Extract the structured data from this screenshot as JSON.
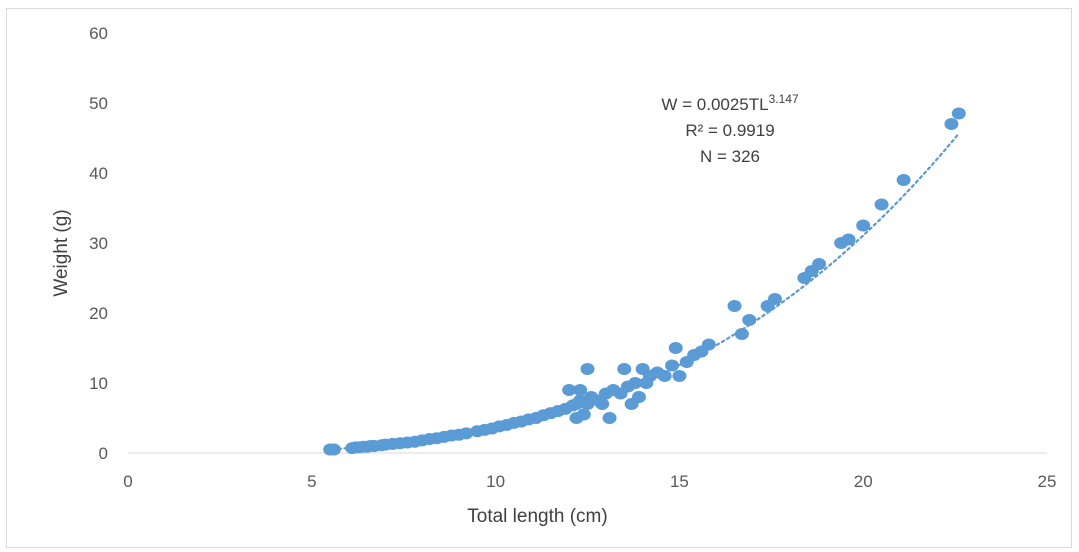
{
  "chart_data": {
    "type": "scatter",
    "xlabel": "Total length (cm)",
    "ylabel": "Weight (g)",
    "xlim": [
      0,
      25
    ],
    "ylim": [
      0,
      60
    ],
    "x_ticks": [
      "0",
      "5",
      "10",
      "15",
      "20",
      "25"
    ],
    "y_ticks": [
      "0",
      "10",
      "20",
      "30",
      "40",
      "50",
      "60"
    ],
    "grid": false,
    "legend": "none",
    "marker_color": "#5b9bd5",
    "trendline": {
      "type": "power",
      "a": 0.0025,
      "b": 3.147,
      "style": "dotted",
      "color": "#5b9bd5"
    },
    "annotation": {
      "equation_prefix": "W = 0.0025TL",
      "equation_exponent": "3.147",
      "r2": "R² = 0.9919",
      "n": "N = 326"
    },
    "points": [
      [
        5.5,
        0.5
      ],
      [
        5.6,
        0.5
      ],
      [
        6.1,
        0.7
      ],
      [
        6.2,
        0.8
      ],
      [
        6.3,
        0.8
      ],
      [
        6.4,
        0.9
      ],
      [
        6.5,
        0.9
      ],
      [
        6.6,
        1.0
      ],
      [
        6.7,
        1.0
      ],
      [
        6.9,
        1.1
      ],
      [
        7.0,
        1.2
      ],
      [
        7.2,
        1.3
      ],
      [
        7.4,
        1.4
      ],
      [
        7.6,
        1.5
      ],
      [
        7.8,
        1.6
      ],
      [
        8.0,
        1.8
      ],
      [
        8.2,
        2.0
      ],
      [
        8.4,
        2.1
      ],
      [
        8.6,
        2.3
      ],
      [
        8.8,
        2.5
      ],
      [
        9.0,
        2.6
      ],
      [
        9.2,
        2.8
      ],
      [
        9.5,
        3.1
      ],
      [
        9.7,
        3.3
      ],
      [
        9.9,
        3.5
      ],
      [
        10.1,
        3.8
      ],
      [
        10.3,
        4.0
      ],
      [
        10.5,
        4.3
      ],
      [
        10.7,
        4.5
      ],
      [
        10.9,
        4.8
      ],
      [
        11.1,
        5.0
      ],
      [
        11.3,
        5.4
      ],
      [
        11.5,
        5.7
      ],
      [
        11.7,
        6.0
      ],
      [
        11.9,
        6.3
      ],
      [
        12.0,
        9.0
      ],
      [
        12.1,
        6.8
      ],
      [
        12.2,
        7.0
      ],
      [
        12.2,
        5.0
      ],
      [
        12.3,
        9.0
      ],
      [
        12.3,
        7.5
      ],
      [
        12.4,
        5.5
      ],
      [
        12.5,
        12.0
      ],
      [
        12.5,
        7.0
      ],
      [
        12.6,
        8.0
      ],
      [
        12.8,
        7.5
      ],
      [
        12.9,
        7.0
      ],
      [
        13.0,
        8.5
      ],
      [
        13.1,
        5.0
      ],
      [
        13.2,
        9.0
      ],
      [
        13.4,
        8.5
      ],
      [
        13.5,
        12.0
      ],
      [
        13.6,
        9.5
      ],
      [
        13.7,
        7.0
      ],
      [
        13.8,
        10.0
      ],
      [
        13.9,
        8.0
      ],
      [
        14.0,
        12.0
      ],
      [
        14.1,
        10.0
      ],
      [
        14.2,
        11.0
      ],
      [
        14.4,
        11.5
      ],
      [
        14.6,
        11.0
      ],
      [
        14.8,
        12.5
      ],
      [
        14.9,
        15.0
      ],
      [
        15.0,
        11.0
      ],
      [
        15.2,
        13.0
      ],
      [
        15.4,
        14.0
      ],
      [
        15.6,
        14.5
      ],
      [
        15.8,
        15.5
      ],
      [
        16.5,
        21.0
      ],
      [
        16.7,
        17.0
      ],
      [
        16.9,
        19.0
      ],
      [
        17.4,
        21.0
      ],
      [
        17.6,
        22.0
      ],
      [
        18.4,
        25.0
      ],
      [
        18.6,
        26.0
      ],
      [
        18.8,
        27.0
      ],
      [
        19.4,
        30.0
      ],
      [
        19.6,
        30.5
      ],
      [
        20.0,
        32.5
      ],
      [
        20.5,
        35.5
      ],
      [
        21.1,
        39.0
      ],
      [
        22.4,
        47.0
      ],
      [
        22.6,
        48.5
      ]
    ]
  }
}
